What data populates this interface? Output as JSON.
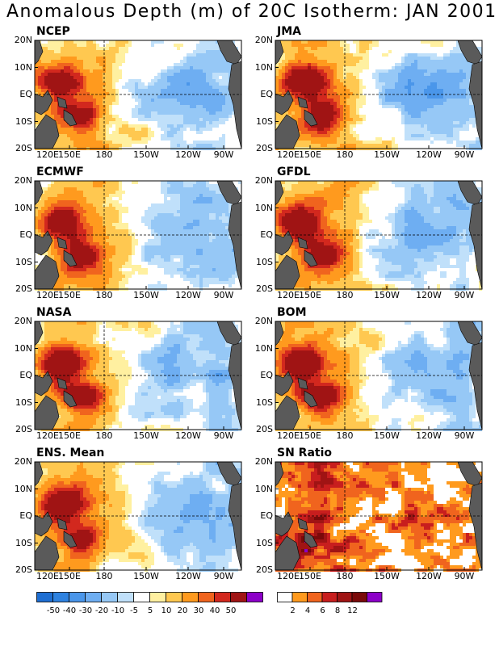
{
  "title": "Anomalous Depth (m) of 20C Isotherm: JAN 2001",
  "lat_labels": [
    "20N",
    "10N",
    "EQ",
    "10S",
    "20S"
  ],
  "lon_labels": [
    "120E",
    "150E",
    "180",
    "150W",
    "120W",
    "90W"
  ],
  "panels": [
    {
      "name": "NCEP",
      "type": "anom"
    },
    {
      "name": "JMA",
      "type": "anom"
    },
    {
      "name": "ECMWF",
      "type": "anom"
    },
    {
      "name": "GFDL",
      "type": "anom"
    },
    {
      "name": "NASA",
      "type": "anom"
    },
    {
      "name": "BOM",
      "type": "anom"
    },
    {
      "name": "ENS. Mean",
      "type": "anom"
    },
    {
      "name": "SN Ratio",
      "type": "sn"
    }
  ],
  "anomaly_colorbar": {
    "labels": [
      "-50",
      "-40",
      "-30",
      "-20",
      "-10",
      "-5",
      "5",
      "10",
      "20",
      "30",
      "40",
      "50"
    ],
    "colors": [
      "#1e6ed2",
      "#2e82e0",
      "#4a96ea",
      "#6eaef2",
      "#96c8f6",
      "#c0e0fa",
      "#ffffff",
      "#fff0a0",
      "#ffc850",
      "#ff9a1e",
      "#f0641e",
      "#d2281e",
      "#a01414",
      "#8c00c8"
    ]
  },
  "sn_colorbar": {
    "labels": [
      "2",
      "4",
      "6",
      "8",
      "12"
    ],
    "colors": [
      "#ffffff",
      "#ff9a1e",
      "#f0641e",
      "#c81e1e",
      "#a01414",
      "#7a0a0a",
      "#8c00c8"
    ]
  },
  "colors": {
    "land": "#5a5a5a",
    "background": "#ffffff"
  }
}
